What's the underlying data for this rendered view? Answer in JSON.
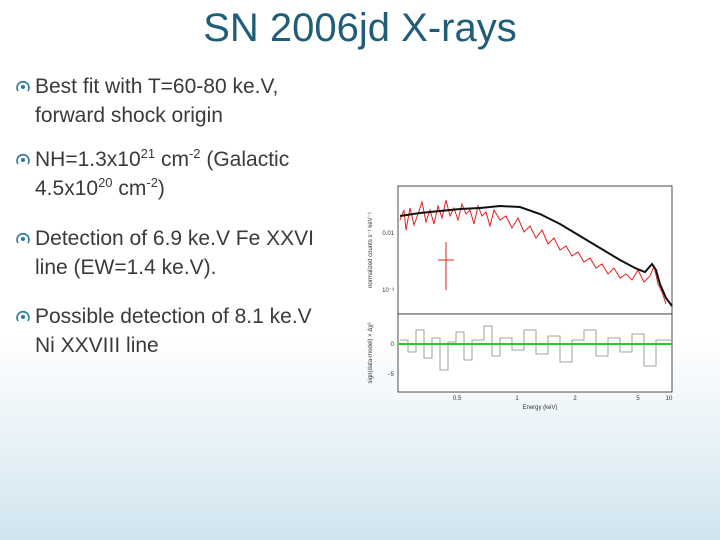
{
  "title": "SN 2006jd X-rays",
  "bullets": [
    {
      "lines": [
        "Best fit with T=60-80 ke.V,",
        "forward shock origin"
      ]
    },
    {
      "parts": [
        "NH=1.3x10",
        "21",
        " cm",
        "-2",
        " (Galactic",
        "4.5x10",
        "20",
        " cm",
        "-2",
        ")"
      ]
    },
    {
      "lines": [
        "Detection of 6.9 ke.V Fe XXVI",
        "line (EW=1.4 ke.V)."
      ]
    },
    {
      "lines": [
        "Possible detection of 8.1 ke.V",
        "Ni XXVIII line"
      ]
    }
  ],
  "figure": {
    "y_label_top": "normalized counts s⁻¹ keV⁻¹",
    "y_label_bottom": "sign(data-model) × Δχ²",
    "x_label": "Energy (keV)",
    "y_ticks_top": [
      "0.01",
      "10⁻³"
    ],
    "y_ticks_bottom": [
      "0",
      "−5"
    ],
    "x_ticks": [
      "0.5",
      "1",
      "2",
      "5",
      "10"
    ]
  }
}
